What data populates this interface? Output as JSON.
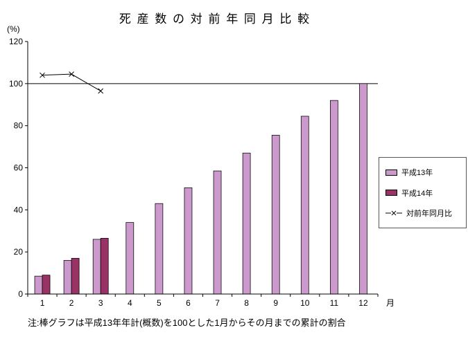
{
  "title": "死 産 数 の 対 前 年 同 月 比 較",
  "y_axis_unit": "(%)",
  "x_axis_unit": "月",
  "note": "注:棒グラフは平成13年年計(概数)を100とした1月からその月までの累計の割合",
  "chart_data": {
    "type": "bar",
    "title": "死 産 数 の 対 前 年 同 月 比 較",
    "ylabel": "(%)",
    "xlabel": "月",
    "ylim": [
      0,
      120
    ],
    "yticks": [
      0,
      20,
      40,
      60,
      80,
      100,
      120
    ],
    "reference_line": 100,
    "grid": false,
    "legend_position": "right",
    "categories": [
      "1",
      "2",
      "3",
      "4",
      "5",
      "6",
      "7",
      "8",
      "9",
      "10",
      "11",
      "12"
    ],
    "series": [
      {
        "name": "平成13年",
        "type": "bar",
        "color": "#CC99CC",
        "values": [
          8.5,
          16,
          26,
          34,
          43,
          50.5,
          58.5,
          67,
          75.5,
          84.5,
          92,
          100
        ]
      },
      {
        "name": "平成14年",
        "type": "bar",
        "color": "#993366",
        "values": [
          9,
          17,
          26.5,
          null,
          null,
          null,
          null,
          null,
          null,
          null,
          null,
          null
        ]
      },
      {
        "name": "対前年同月比",
        "type": "line",
        "color": "#000000",
        "marker": "x",
        "values": [
          104,
          104.5,
          96.5,
          null,
          null,
          null,
          null,
          null,
          null,
          null,
          null,
          null
        ]
      }
    ]
  }
}
